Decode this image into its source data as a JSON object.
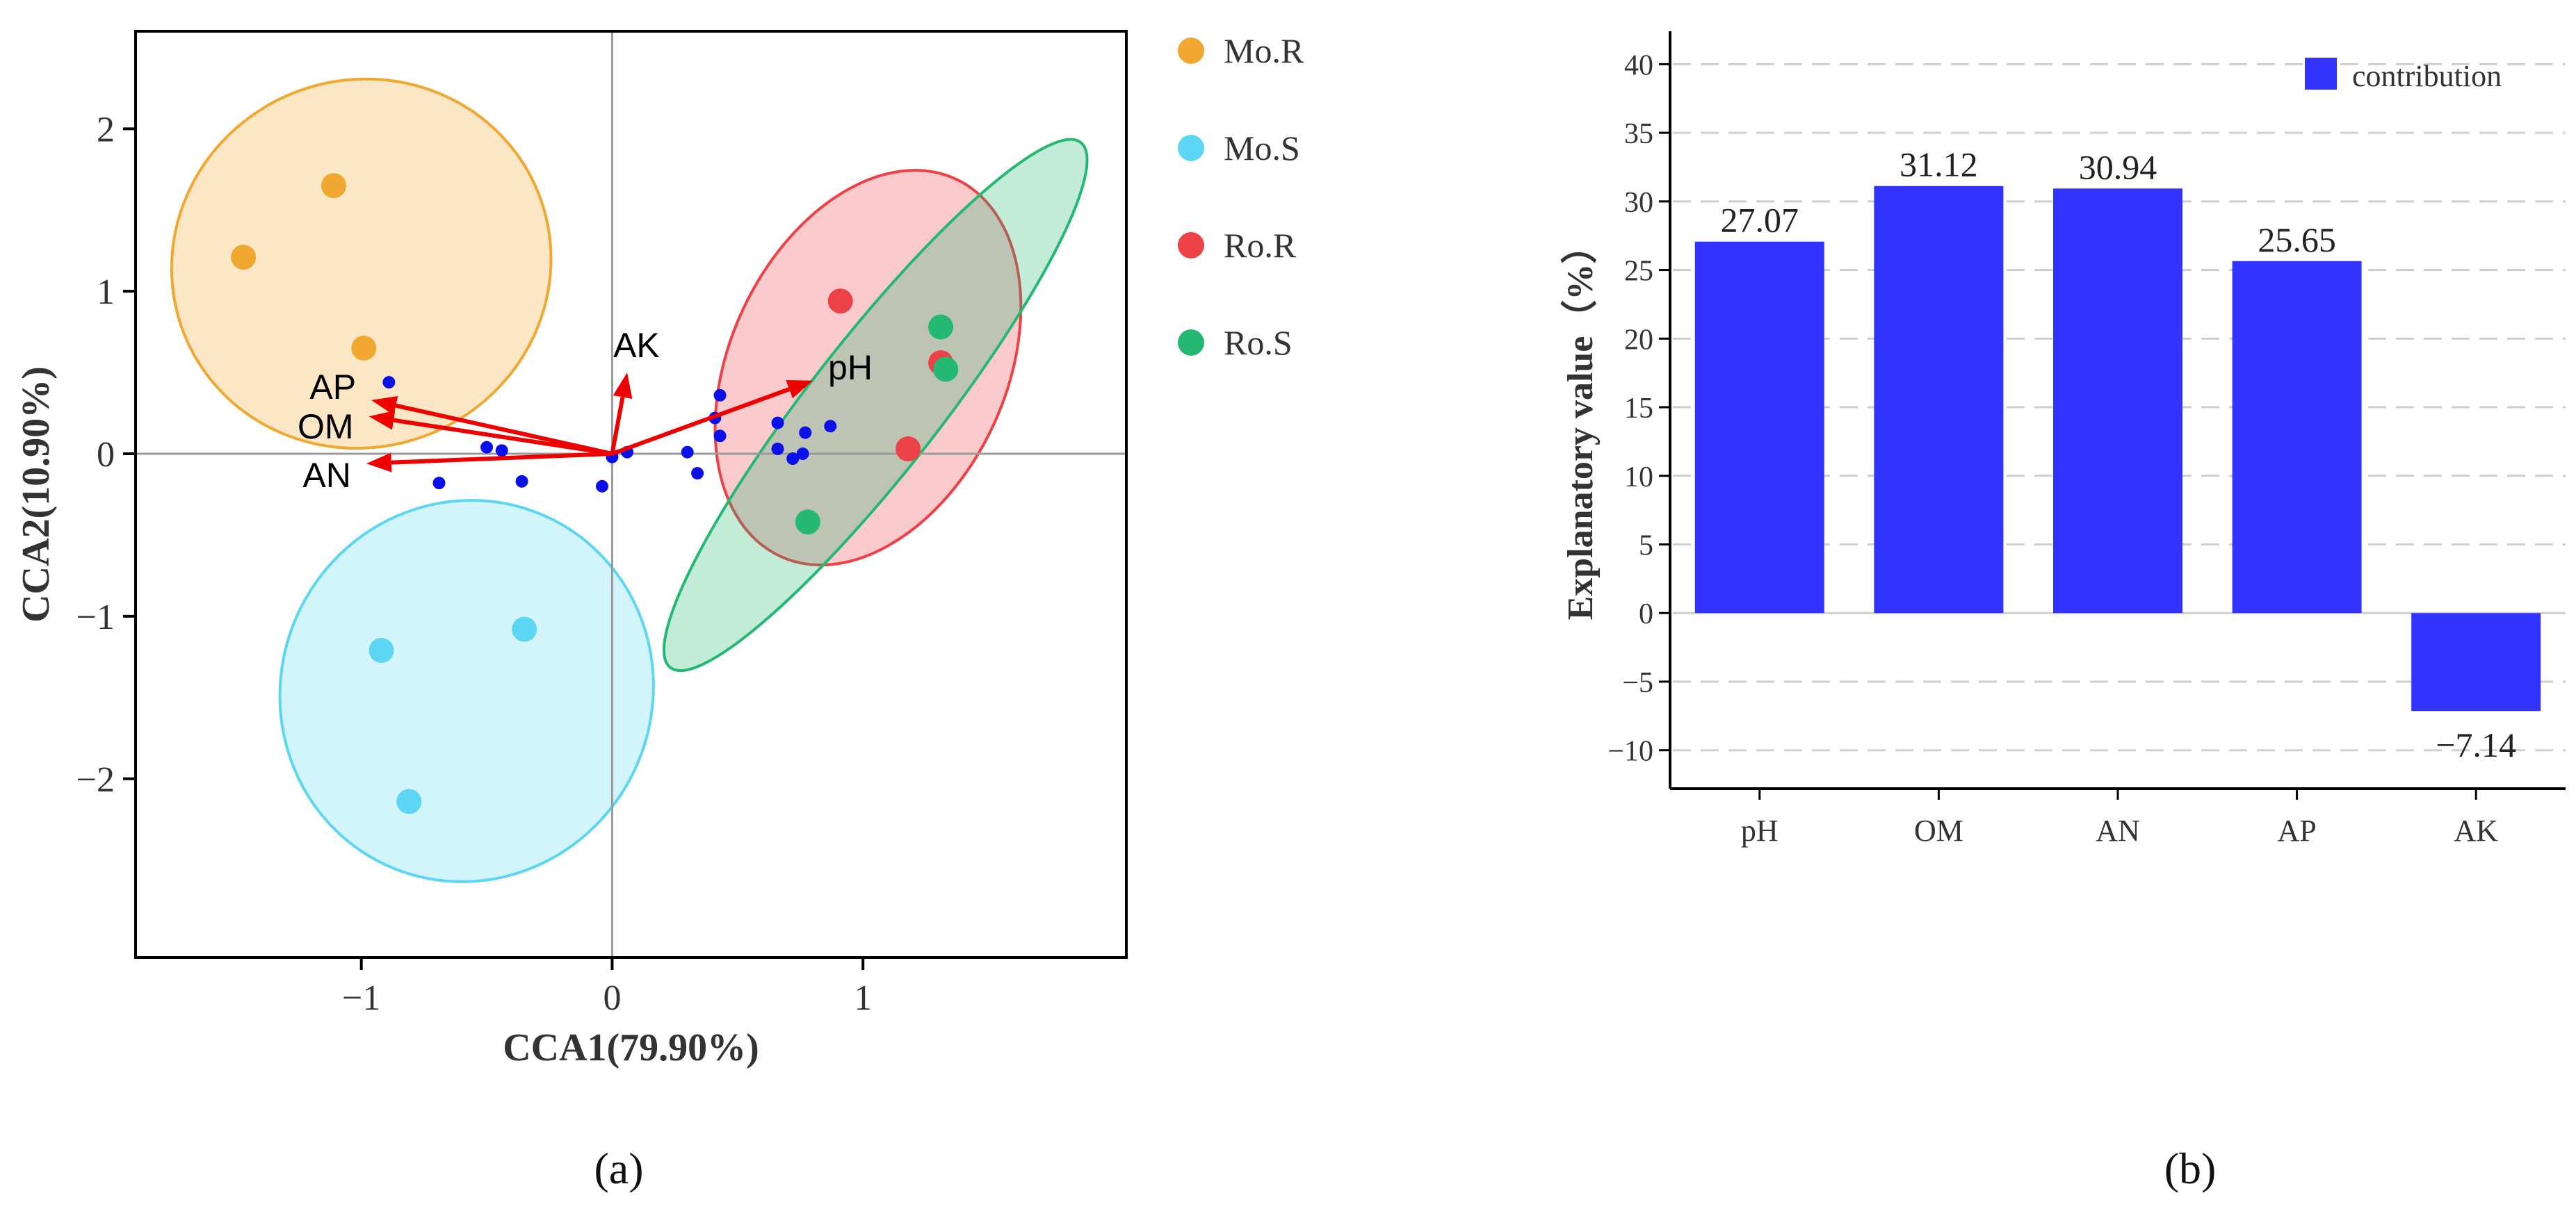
{
  "colors": {
    "Mo.R": "#F0A830",
    "Mo.S": "#5CD6F2",
    "Ro.R": "#EC4147",
    "Ro.S": "#25B873",
    "species": "#0A10E8",
    "arrow": "#EE0000",
    "bar": "#3333FF"
  },
  "chart_data": [
    {
      "type": "scatter",
      "panel_label": "(a)",
      "xlabel": "CCA1(79.90%)",
      "ylabel": "CCA2(10.90%)",
      "xlim": [
        -1.9,
        2.05
      ],
      "ylim": [
        -3.1,
        2.6
      ],
      "xticks": [
        -1,
        0,
        1
      ],
      "yticks": [
        -2,
        -1,
        0,
        1,
        2
      ],
      "xtick_labels": [
        "−1",
        "0",
        "1"
      ],
      "ytick_labels": [
        "−2",
        "−1",
        "0",
        "1",
        "2"
      ],
      "legend": [
        "Mo.R",
        "Mo.S",
        "Ro.R",
        "Ro.S"
      ],
      "groups": [
        {
          "name": "Mo.R",
          "points": [
            [
              -1.11,
              1.65
            ],
            [
              -1.47,
              1.21
            ],
            [
              -0.99,
              0.65
            ]
          ],
          "ellipse": {
            "cx": -1.0,
            "cy": 1.17,
            "rx": 0.76,
            "ry": 1.13,
            "angle": -22
          }
        },
        {
          "name": "Mo.S",
          "points": [
            [
              -0.35,
              -1.08
            ],
            [
              -0.92,
              -1.21
            ],
            [
              -0.81,
              -2.14
            ]
          ],
          "ellipse": {
            "cx": -0.58,
            "cy": -1.46,
            "rx": 0.74,
            "ry": 1.18,
            "angle": 25
          }
        },
        {
          "name": "Ro.R",
          "points": [
            [
              0.91,
              0.94
            ],
            [
              1.31,
              0.56
            ],
            [
              1.18,
              0.03
            ]
          ],
          "ellipse": {
            "cx": 1.02,
            "cy": 0.53,
            "rx": 0.55,
            "ry": 1.28,
            "angle": 25
          }
        },
        {
          "name": "Ro.S",
          "points": [
            [
              1.31,
              0.78
            ],
            [
              1.33,
              0.52
            ],
            [
              0.78,
              -0.42
            ]
          ],
          "ellipse": {
            "cx": 1.05,
            "cy": 0.3,
            "rx": 0.26,
            "ry": 2.05,
            "angle": 38
          }
        }
      ],
      "species_points": [
        [
          -0.89,
          0.44
        ],
        [
          -0.5,
          0.04
        ],
        [
          -0.44,
          0.02
        ],
        [
          -0.69,
          -0.18
        ],
        [
          -0.36,
          -0.17
        ],
        [
          -0.04,
          -0.2
        ],
        [
          0.0,
          -0.02
        ],
        [
          0.06,
          0.01
        ],
        [
          0.3,
          0.01
        ],
        [
          0.34,
          -0.12
        ],
        [
          0.41,
          0.22
        ],
        [
          0.43,
          0.36
        ],
        [
          0.43,
          0.11
        ],
        [
          0.66,
          0.19
        ],
        [
          0.66,
          0.03
        ],
        [
          0.72,
          -0.03
        ],
        [
          0.76,
          0.0
        ],
        [
          0.77,
          0.13
        ],
        [
          0.87,
          0.17
        ]
      ],
      "arrows": [
        {
          "label": "AP",
          "x": -0.96,
          "y": 0.33
        },
        {
          "label": "OM",
          "x": -0.97,
          "y": 0.23
        },
        {
          "label": "AN",
          "x": -0.98,
          "y": -0.06
        },
        {
          "label": "AK",
          "x": 0.06,
          "y": 0.5
        },
        {
          "label": "pH",
          "x": 0.8,
          "y": 0.45
        }
      ]
    },
    {
      "type": "bar",
      "panel_label": "(b)",
      "categories": [
        "pH",
        "OM",
        "AN",
        "AP",
        "AK"
      ],
      "values": [
        27.07,
        31.12,
        30.94,
        25.65,
        -7.14
      ],
      "value_labels": [
        "27.07",
        "31.12",
        "30.94",
        "25.65",
        "−7.14"
      ],
      "series_name": "contribution",
      "ylabel": "Explanatory value（%）",
      "ylim": [
        -12.8,
        42.4
      ],
      "yticks": [
        -10,
        -5,
        0,
        5,
        10,
        15,
        20,
        25,
        30,
        35,
        40
      ],
      "ytick_labels": [
        "−10",
        "−5",
        "0",
        "5",
        "10",
        "15",
        "20",
        "25",
        "30",
        "35",
        "40"
      ],
      "grid": "horizontal dashed",
      "legend_position": "top-right"
    }
  ]
}
